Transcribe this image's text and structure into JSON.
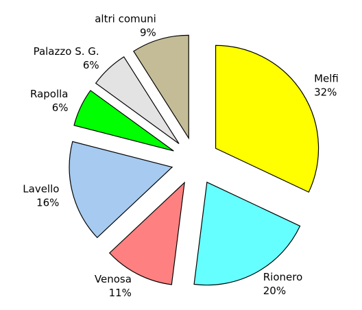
{
  "chart_data": {
    "type": "pie",
    "categories": [
      "Melfi",
      "Rionero",
      "Venosa",
      "Lavello",
      "Rapolla",
      "Palazzo S. G.",
      "altri comuni"
    ],
    "values": [
      32,
      20,
      11,
      16,
      6,
      6,
      9
    ],
    "value_labels": [
      "32%",
      "20%",
      "11%",
      "16%",
      "6%",
      "6%",
      "9%"
    ],
    "colors": [
      "#ffff00",
      "#66ffff",
      "#ff8080",
      "#a6caf0",
      "#00ff00",
      "#e3e3e3",
      "#c4bc96"
    ],
    "start_angle": 0,
    "direction": "clockwise",
    "exploded": true
  }
}
